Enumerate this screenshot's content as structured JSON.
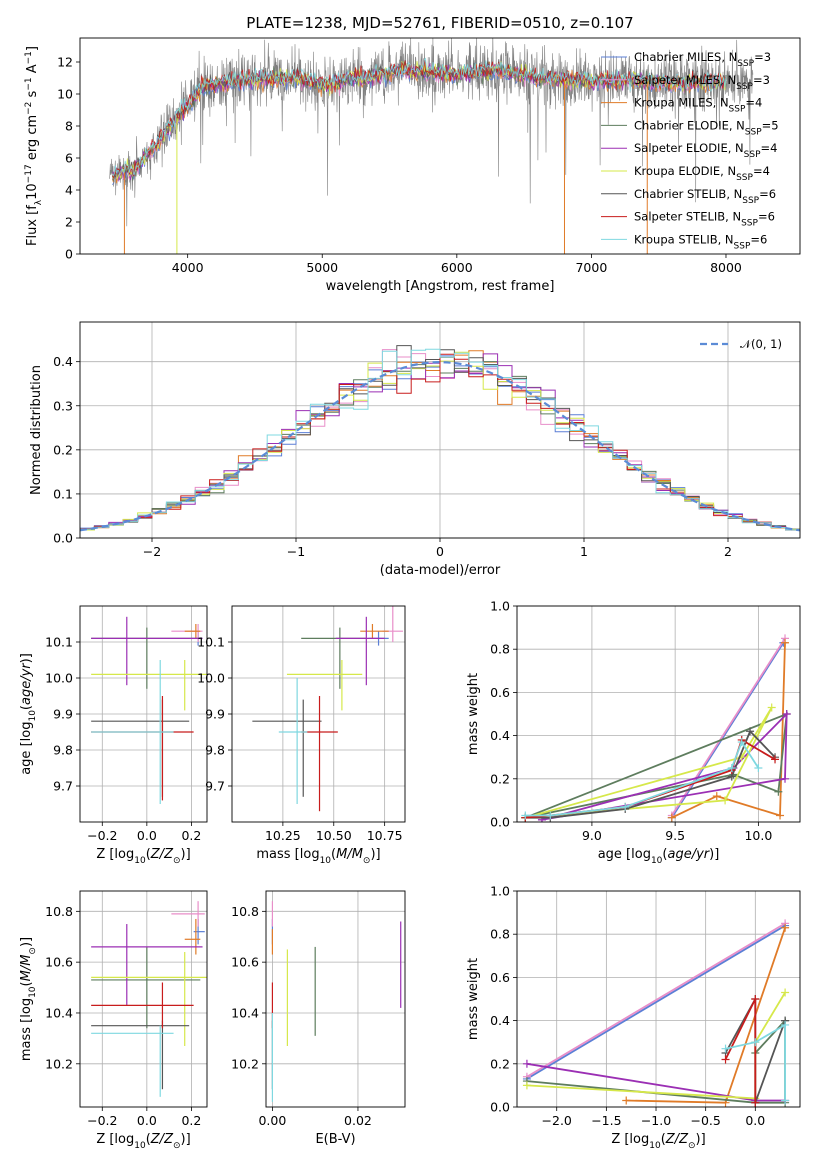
{
  "figure": {
    "title": "PLATE=1238, MJD=52761, FIBERID=0510, z=0.107"
  },
  "chart_data": [
    {
      "id": "spectrum",
      "type": "line",
      "title": "PLATE=1238, MJD=52761, FIBERID=0510, z=0.107",
      "xlabel": "wavelength [Angstrom, rest frame]",
      "ylabel": "Flux [f_λ10^-17 erg cm^-2 s^-1 A^-1]",
      "xlim": [
        3200,
        8550
      ],
      "ylim": [
        0,
        13.5
      ],
      "xticks": [
        "4000",
        "5000",
        "6000",
        "7000",
        "8000"
      ],
      "yticks": [
        "0",
        "2",
        "4",
        "6",
        "8",
        "10",
        "12"
      ],
      "grid": false,
      "legend_position": "top-right",
      "continuum_x": [
        3400,
        3600,
        3800,
        3950,
        4100,
        4300,
        4500,
        4800,
        5000,
        5300,
        5600,
        6000,
        6300,
        6600,
        7000,
        7300,
        7600,
        8000,
        8200
      ],
      "continuum_y": [
        4.9,
        5.2,
        7.2,
        8.8,
        10.4,
        10.8,
        10.9,
        11.0,
        10.6,
        11.0,
        11.5,
        11.2,
        11.5,
        11.0,
        10.8,
        10.9,
        10.6,
        10.8,
        10.6
      ],
      "series": [
        {
          "name": "Chabrier MILES, N_SSP=3",
          "color": "#5b7fd6"
        },
        {
          "name": "Salpeter MILES, N_SSP=3",
          "color": "#e88ec9"
        },
        {
          "name": "Kroupa MILES, N_SSP=4",
          "color": "#e07b28"
        },
        {
          "name": "Chabrier ELODIE, N_SSP=5",
          "color": "#5e7d5e"
        },
        {
          "name": "Salpeter ELODIE, N_SSP=4",
          "color": "#9b2fb4"
        },
        {
          "name": "Kroupa ELODIE, N_SSP=4",
          "color": "#d6e84a"
        },
        {
          "name": "Chabrier STELIB, N_SSP=6",
          "color": "#555555"
        },
        {
          "name": "Salpeter STELIB, N_SSP=6",
          "color": "#c81c1c"
        },
        {
          "name": "Kroupa STELIB, N_SSP=6",
          "color": "#7fd8e0"
        }
      ]
    },
    {
      "id": "residuals",
      "type": "line",
      "xlabel": "(data-model)/error",
      "ylabel": "Normed distribution",
      "xlim": [
        -2.5,
        2.5
      ],
      "ylim": [
        0,
        0.49
      ],
      "xticks": [
        "−2",
        "−1",
        "0",
        "1",
        "2"
      ],
      "yticks": [
        "0.0",
        "0.1",
        "0.2",
        "0.3",
        "0.4"
      ],
      "grid": true,
      "legend_position": "top-right",
      "legend": [
        "N(0,1)"
      ],
      "histogram_bins": 50,
      "histogram_series_colors": [
        "#5b7fd6",
        "#e88ec9",
        "#e07b28",
        "#5e7d5e",
        "#9b2fb4",
        "#d6e84a",
        "#555555",
        "#c81c1c",
        "#7fd8e0"
      ]
    },
    {
      "id": "age-vs-Z",
      "type": "scatter",
      "xlabel": "Z [log10(Z/Z⊙)]",
      "ylabel": "age  [log10(age/yr)]",
      "xlim": [
        -0.3,
        0.27
      ],
      "ylim": [
        9.6,
        10.2
      ],
      "xticks": [
        "−0.2",
        "0.0",
        "0.2"
      ],
      "yticks": [
        "9.7",
        "9.8",
        "9.9",
        "10.0",
        "10.1"
      ],
      "grid": true,
      "points": [
        {
          "series": "Chabrier MILES",
          "x": 0.23,
          "y": 10.11,
          "xerr": [
            0.01,
            0.02
          ],
          "yerr": [
            0.02,
            0.02
          ]
        },
        {
          "series": "Salpeter MILES",
          "x": 0.23,
          "y": 10.13,
          "xerr": [
            0.12,
            0.02
          ],
          "yerr": [
            0.03,
            0.02
          ]
        },
        {
          "series": "Kroupa MILES",
          "x": 0.22,
          "y": 10.13,
          "xerr": [
            0.05,
            0.02
          ],
          "yerr": [
            0.02,
            0.02
          ]
        },
        {
          "series": "Chabrier ELODIE",
          "x": 0.0,
          "y": 10.11,
          "xerr": [
            0.25,
            0.24
          ],
          "yerr": [
            0.14,
            0.03
          ]
        },
        {
          "series": "Salpeter ELODIE",
          "x": -0.09,
          "y": 10.11,
          "xerr": [
            0.16,
            0.34
          ],
          "yerr": [
            0.13,
            0.06
          ]
        },
        {
          "series": "Kroupa ELODIE",
          "x": 0.17,
          "y": 10.01,
          "xerr": [
            0.42,
            0.1
          ],
          "yerr": [
            0.1,
            0.04
          ]
        },
        {
          "series": "Chabrier STELIB",
          "x": 0.07,
          "y": 9.88,
          "xerr": [
            0.32,
            0.12
          ],
          "yerr": [
            0.21,
            0.06
          ]
        },
        {
          "series": "Salpeter STELIB",
          "x": 0.07,
          "y": 9.85,
          "xerr": [
            0.32,
            0.14
          ],
          "yerr": [
            0.19,
            0.1
          ]
        },
        {
          "series": "Kroupa STELIB",
          "x": 0.06,
          "y": 9.85,
          "xerr": [
            0.31,
            0.06
          ],
          "yerr": [
            0.2,
            0.2
          ]
        }
      ]
    },
    {
      "id": "age-vs-mass",
      "type": "scatter",
      "xlabel": "mass [log10(M/M⊙)]",
      "ylabel": "",
      "xlim": [
        10.0,
        10.85
      ],
      "ylim": [
        9.6,
        10.2
      ],
      "xticks": [
        "10.25",
        "10.50",
        "10.75"
      ],
      "yticks": [
        "9.7",
        "9.8",
        "9.9",
        "10.0",
        "10.1"
      ],
      "grid": true,
      "points": [
        {
          "series": "Chabrier MILES",
          "x": 10.72,
          "y": 10.11,
          "xerr": [
            0.05,
            0.05
          ],
          "yerr": [
            0.02,
            0.02
          ]
        },
        {
          "series": "Salpeter MILES",
          "x": 10.79,
          "y": 10.13,
          "xerr": [
            0.05,
            0.05
          ],
          "yerr": [
            0.03,
            0.08
          ]
        },
        {
          "series": "Kroupa MILES",
          "x": 10.69,
          "y": 10.13,
          "xerr": [
            0.06,
            0.08
          ],
          "yerr": [
            0.02,
            0.02
          ]
        },
        {
          "series": "Chabrier ELODIE",
          "x": 10.53,
          "y": 10.11,
          "xerr": [
            0.19,
            0.13
          ],
          "yerr": [
            0.14,
            0.03
          ]
        },
        {
          "series": "Salpeter ELODIE",
          "x": 10.66,
          "y": 10.11,
          "xerr": [
            0.15,
            0.09
          ],
          "yerr": [
            0.13,
            0.06
          ]
        },
        {
          "series": "Kroupa ELODIE",
          "x": 10.54,
          "y": 10.01,
          "xerr": [
            0.27,
            0.1
          ],
          "yerr": [
            0.1,
            0.04
          ]
        },
        {
          "series": "Chabrier STELIB",
          "x": 10.35,
          "y": 9.88,
          "xerr": [
            0.25,
            0.09
          ],
          "yerr": [
            0.21,
            0.06
          ]
        },
        {
          "series": "Salpeter STELIB",
          "x": 10.43,
          "y": 9.85,
          "xerr": [
            0.09,
            0.09
          ],
          "yerr": [
            0.22,
            0.1
          ]
        },
        {
          "series": "Kroupa STELIB",
          "x": 10.32,
          "y": 9.85,
          "xerr": [
            0.09,
            0.05
          ],
          "yerr": [
            0.2,
            0.15
          ]
        }
      ]
    },
    {
      "id": "weight-vs-age",
      "type": "line",
      "xlabel": "age  [log10(age/yr)]",
      "ylabel": "mass weight",
      "xlim": [
        8.55,
        10.25
      ],
      "ylim": [
        0.0,
        1.0
      ],
      "xticks": [
        "9.0",
        "9.5",
        "10.0"
      ],
      "yticks": [
        "0.0",
        "0.2",
        "0.4",
        "0.6",
        "0.8",
        "1.0"
      ],
      "grid": true,
      "series": [
        {
          "name": "Chabrier MILES",
          "x": [
            9.48,
            10.15
          ],
          "y": [
            0.02,
            0.83
          ]
        },
        {
          "name": "Salpeter MILES",
          "x": [
            9.48,
            10.16
          ],
          "y": [
            0.03,
            0.85
          ]
        },
        {
          "name": "Kroupa MILES",
          "x": [
            9.48,
            9.75,
            10.13,
            10.16
          ],
          "y": [
            0.02,
            0.12,
            0.03,
            0.83
          ]
        },
        {
          "name": "Chabrier ELODIE",
          "x": [
            8.6,
            9.85,
            10.12,
            10.17,
            8.6
          ],
          "y": [
            0.02,
            0.22,
            0.14,
            0.5,
            0.02
          ]
        },
        {
          "name": "Salpeter ELODIE",
          "x": [
            8.7,
            9.85,
            10.17,
            10.16,
            8.7
          ],
          "y": [
            0.01,
            0.25,
            0.5,
            0.2,
            0.01
          ]
        },
        {
          "name": "Kroupa ELODIE",
          "x": [
            8.6,
            9.8,
            10.08,
            9.9,
            8.6
          ],
          "y": [
            0.02,
            0.1,
            0.53,
            0.3,
            0.02
          ]
        },
        {
          "name": "Chabrier STELIB",
          "x": [
            8.6,
            8.75,
            9.2,
            9.84,
            9.95,
            10.1
          ],
          "y": [
            0.02,
            0.02,
            0.06,
            0.21,
            0.42,
            0.3
          ]
        },
        {
          "name": "Salpeter STELIB",
          "x": [
            8.6,
            8.75,
            9.2,
            9.84,
            9.9,
            10.1
          ],
          "y": [
            0.02,
            0.03,
            0.07,
            0.24,
            0.38,
            0.29
          ]
        },
        {
          "name": "Kroupa STELIB",
          "x": [
            8.6,
            8.75,
            9.2,
            9.84,
            9.9,
            10.0
          ],
          "y": [
            0.03,
            0.03,
            0.07,
            0.25,
            0.37,
            0.25
          ]
        }
      ]
    },
    {
      "id": "mass-vs-Z",
      "type": "scatter",
      "xlabel": "Z [log10(Z/Z⊙)]",
      "ylabel": "mass [log10(M/M⊙)]",
      "xlim": [
        -0.3,
        0.27
      ],
      "ylim": [
        10.03,
        10.88
      ],
      "xticks": [
        "−0.2",
        "0.0",
        "0.2"
      ],
      "yticks": [
        "10.2",
        "10.4",
        "10.6",
        "10.8"
      ],
      "grid": true,
      "points": [
        {
          "series": "Chabrier MILES",
          "x": 0.23,
          "y": 10.72,
          "xerr": [
            0.02,
            0.03
          ],
          "yerr": [
            0.05,
            0.05
          ]
        },
        {
          "series": "Salpeter MILES",
          "x": 0.23,
          "y": 10.79,
          "xerr": [
            0.12,
            0.03
          ],
          "yerr": [
            0.05,
            0.05
          ]
        },
        {
          "series": "Kroupa MILES",
          "x": 0.22,
          "y": 10.69,
          "xerr": [
            0.05,
            0.02
          ],
          "yerr": [
            0.06,
            0.08
          ]
        },
        {
          "series": "Chabrier ELODIE",
          "x": 0.0,
          "y": 10.53,
          "xerr": [
            0.25,
            0.24
          ],
          "yerr": [
            0.19,
            0.13
          ]
        },
        {
          "series": "Salpeter ELODIE",
          "x": -0.09,
          "y": 10.66,
          "xerr": [
            0.16,
            0.34
          ],
          "yerr": [
            0.23,
            0.09
          ]
        },
        {
          "series": "Kroupa ELODIE",
          "x": 0.17,
          "y": 10.54,
          "xerr": [
            0.42,
            0.1
          ],
          "yerr": [
            0.27,
            0.1
          ]
        },
        {
          "series": "Chabrier STELIB",
          "x": 0.07,
          "y": 10.35,
          "xerr": [
            0.32,
            0.12
          ],
          "yerr": [
            0.25,
            0.02
          ]
        },
        {
          "series": "Salpeter STELIB",
          "x": 0.07,
          "y": 10.43,
          "xerr": [
            0.32,
            0.14
          ],
          "yerr": [
            0.09,
            0.09
          ]
        },
        {
          "series": "Kroupa STELIB",
          "x": 0.06,
          "y": 10.32,
          "xerr": [
            0.31,
            0.06
          ],
          "yerr": [
            0.25,
            0.03
          ]
        }
      ]
    },
    {
      "id": "mass-vs-ebv",
      "type": "scatter",
      "xlabel": "E(B-V)",
      "ylabel": "",
      "xlim": [
        -0.0015,
        0.031
      ],
      "ylim": [
        10.03,
        10.88
      ],
      "xticks": [
        "0.00",
        "0.02"
      ],
      "yticks": [
        "10.2",
        "10.4",
        "10.6",
        "10.8"
      ],
      "grid": true,
      "points": [
        {
          "series": "Chabrier MILES",
          "x": 0.0,
          "y": 10.72,
          "yerr": [
            0.05,
            0.05
          ]
        },
        {
          "series": "Salpeter MILES",
          "x": 0.0,
          "y": 10.79,
          "yerr": [
            0.05,
            0.05
          ]
        },
        {
          "series": "Kroupa MILES",
          "x": 0.0,
          "y": 10.69,
          "yerr": [
            0.06,
            0.04
          ]
        },
        {
          "series": "Chabrier ELODIE",
          "x": 0.01,
          "y": 10.49,
          "yerr": [
            0.18,
            0.17
          ]
        },
        {
          "series": "Salpeter ELODIE",
          "x": 0.03,
          "y": 10.59,
          "yerr": [
            0.17,
            0.17
          ]
        },
        {
          "series": "Kroupa ELODIE",
          "x": 0.0035,
          "y": 10.46,
          "yerr": [
            0.19,
            0.19
          ]
        },
        {
          "series": "Chabrier STELIB",
          "x": 0.0,
          "y": 10.35,
          "yerr": [
            0.25,
            0.02
          ]
        },
        {
          "series": "Salpeter STELIB",
          "x": 0.0,
          "y": 10.43,
          "yerr": [
            0.09,
            0.09
          ]
        },
        {
          "series": "Kroupa STELIB",
          "x": 0.0,
          "y": 10.25,
          "yerr": [
            0.2,
            0.15
          ]
        }
      ]
    },
    {
      "id": "weight-vs-Z",
      "type": "line",
      "xlabel": "Z [log10(Z/Z⊙)]",
      "ylabel": "mass weight",
      "xlim": [
        -2.4,
        0.45
      ],
      "ylim": [
        0.0,
        1.0
      ],
      "xticks": [
        "−2.0",
        "−1.5",
        "−1.0",
        "−0.5",
        "0.0"
      ],
      "yticks": [
        "0.0",
        "0.2",
        "0.4",
        "0.6",
        "0.8",
        "1.0"
      ],
      "grid": true,
      "series": [
        {
          "name": "Chabrier MILES",
          "x": [
            -2.3,
            0.3
          ],
          "y": [
            0.13,
            0.84
          ]
        },
        {
          "name": "Salpeter MILES",
          "x": [
            -2.3,
            0.3
          ],
          "y": [
            0.14,
            0.85
          ]
        },
        {
          "name": "Kroupa MILES",
          "x": [
            -1.3,
            -0.3,
            0.3
          ],
          "y": [
            0.03,
            0.02,
            0.83
          ]
        },
        {
          "name": "Chabrier ELODIE",
          "x": [
            -2.3,
            0.0,
            0.3,
            0.3,
            0.0
          ],
          "y": [
            0.12,
            0.02,
            0.02,
            0.4,
            0.25
          ]
        },
        {
          "name": "Salpeter ELODIE",
          "x": [
            -2.3,
            0.0,
            0.3
          ],
          "y": [
            0.2,
            0.03,
            0.03
          ]
        },
        {
          "name": "Kroupa ELODIE",
          "x": [
            -2.3,
            0.0,
            0.0,
            0.3
          ],
          "y": [
            0.1,
            0.04,
            0.3,
            0.53
          ]
        },
        {
          "name": "Chabrier STELIB",
          "x": [
            -0.3,
            0.0,
            0.0,
            0.3
          ],
          "y": [
            0.25,
            0.5,
            0.02,
            0.4
          ]
        },
        {
          "name": "Salpeter STELIB",
          "x": [
            -0.3,
            0.0,
            0.0
          ],
          "y": [
            0.22,
            0.5,
            0.02
          ]
        },
        {
          "name": "Kroupa STELIB",
          "x": [
            -0.3,
            0.0,
            0.3,
            0.3
          ],
          "y": [
            0.27,
            0.3,
            0.38,
            0.03
          ]
        }
      ]
    }
  ]
}
